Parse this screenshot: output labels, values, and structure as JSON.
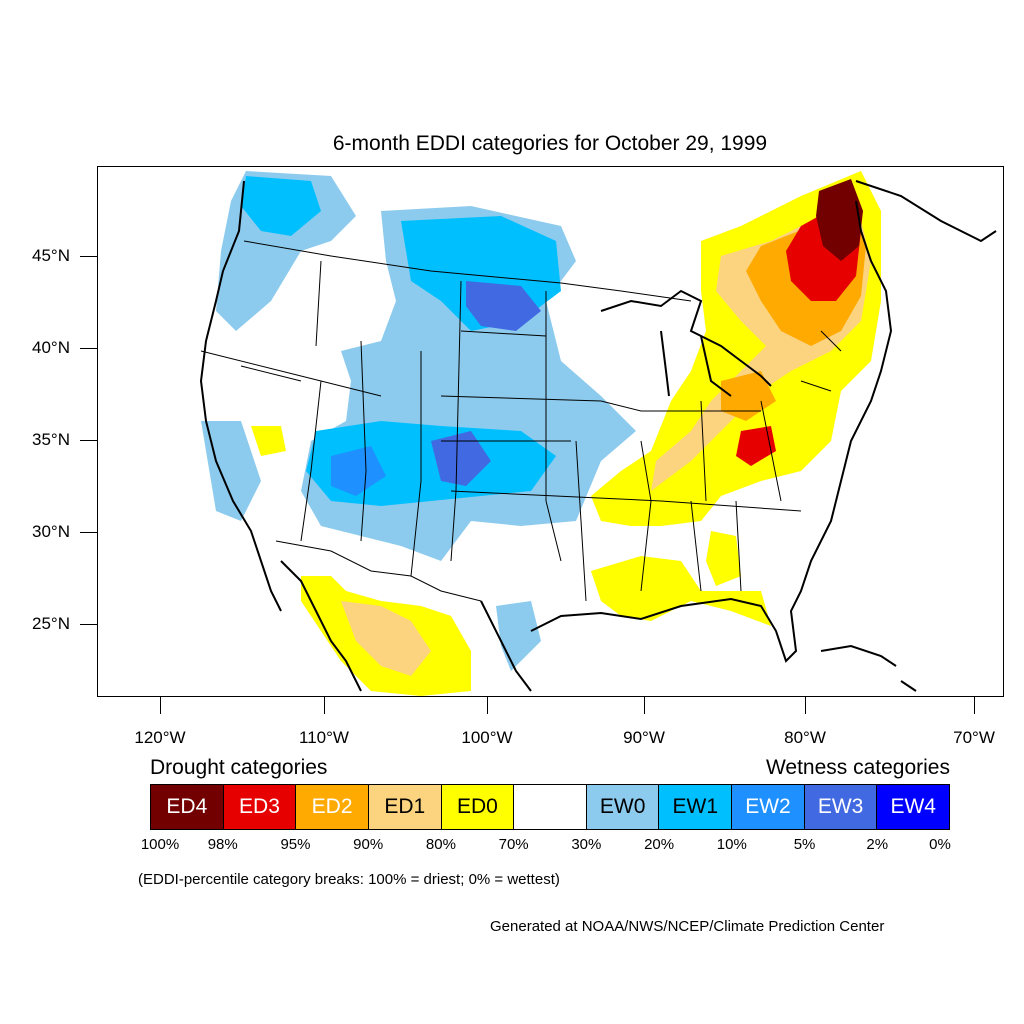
{
  "title": "6-month EDDI categories for October 29, 1999",
  "map": {
    "lat_labels": [
      "45°N",
      "40°N",
      "35°N",
      "30°N",
      "25°N"
    ],
    "lon_labels": [
      "120°W",
      "110°W",
      "100°W",
      "90°W",
      "80°W",
      "70°W"
    ]
  },
  "legend": {
    "drought_heading": "Drought categories",
    "wetness_heading": "Wetness categories",
    "categories": [
      {
        "label": "ED4",
        "color": "#730000",
        "text_color": "#ffffff"
      },
      {
        "label": "ED3",
        "color": "#e60000",
        "text_color": "#ffffff"
      },
      {
        "label": "ED2",
        "color": "#ffaa00",
        "text_color": "#ffffff"
      },
      {
        "label": "ED1",
        "color": "#fcd37f",
        "text_color": "#000000"
      },
      {
        "label": "ED0",
        "color": "#ffff00",
        "text_color": "#000000"
      },
      {
        "label": "",
        "color": "#ffffff",
        "text_color": "#000000"
      },
      {
        "label": "EW0",
        "color": "#8ccbee",
        "text_color": "#000000"
      },
      {
        "label": "EW1",
        "color": "#00bfff",
        "text_color": "#000000"
      },
      {
        "label": "EW2",
        "color": "#1e90ff",
        "text_color": "#ffffff"
      },
      {
        "label": "EW3",
        "color": "#4169e1",
        "text_color": "#ffffff"
      },
      {
        "label": "EW4",
        "color": "#0000ff",
        "text_color": "#ffffff"
      }
    ],
    "breaks": [
      "100%",
      "98%",
      "95%",
      "90%",
      "80%",
      "70%",
      "30%",
      "20%",
      "10%",
      "5%",
      "2%",
      "0%"
    ]
  },
  "footnote": "(EDDI-percentile category breaks: 100% = driest; 0% = wettest)",
  "credit": "Generated at NOAA/NWS/NCEP/Climate Prediction Center"
}
